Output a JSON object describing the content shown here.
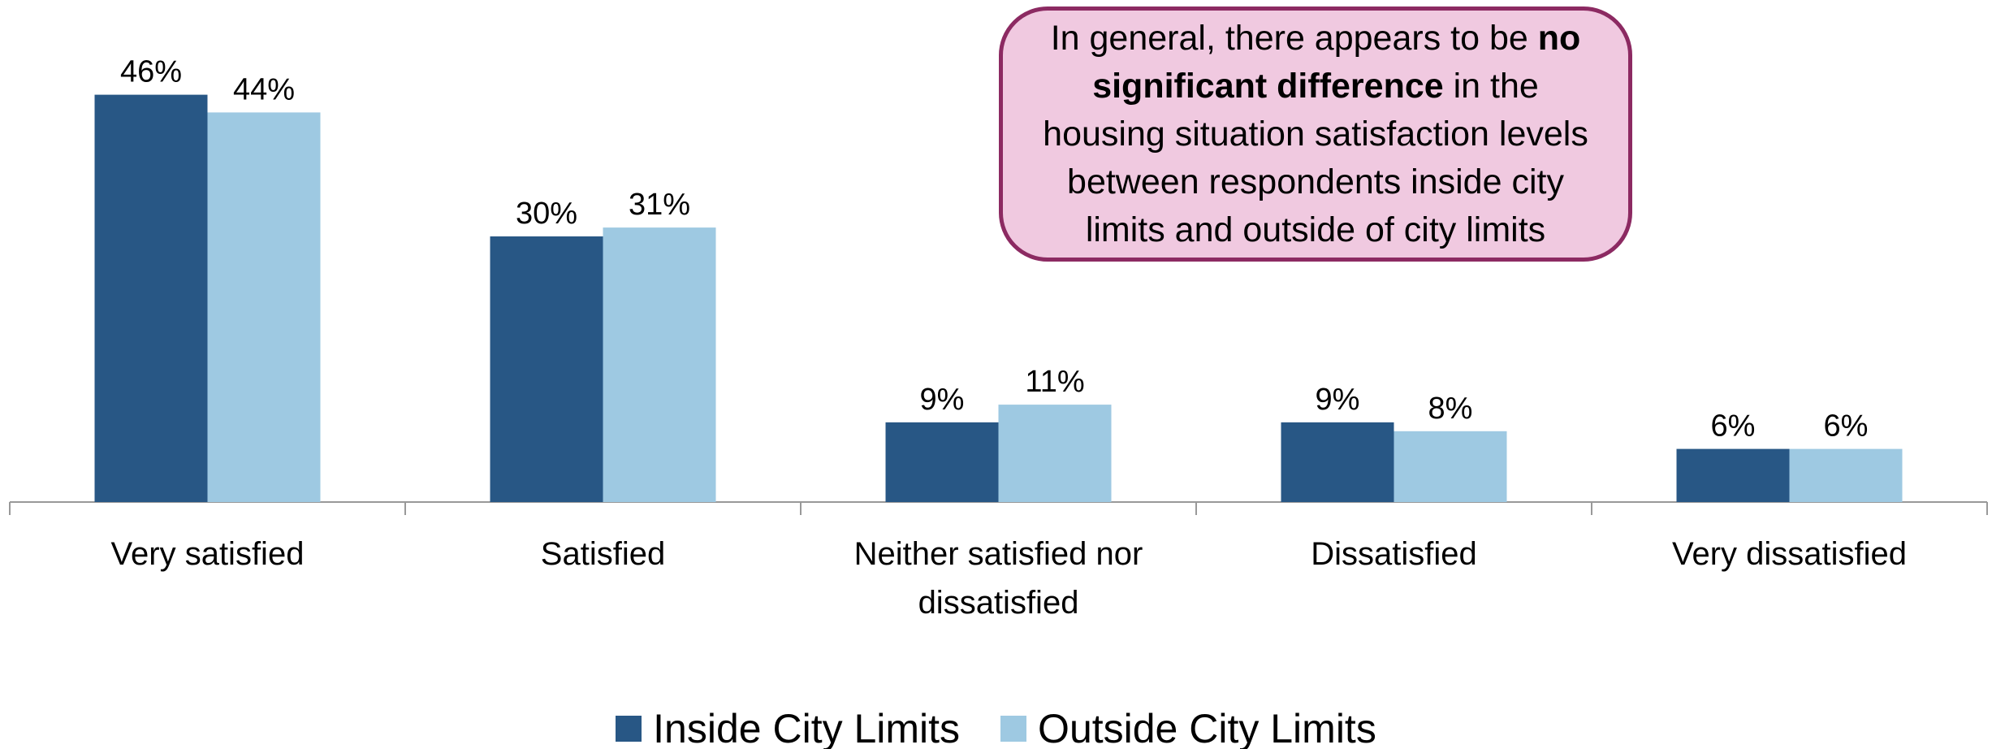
{
  "chart_data": {
    "type": "bar",
    "categories": [
      "Very satisfied",
      "Satisfied",
      "Neither satisfied nor dissatisfied",
      "Dissatisfied",
      "Very dissatisfied"
    ],
    "series": [
      {
        "name": "Inside City Limits",
        "color": "#285785",
        "values": [
          46,
          30,
          9,
          9,
          6
        ],
        "value_labels": [
          "46%",
          "30%",
          "9%",
          "9%",
          "6%"
        ]
      },
      {
        "name": "Outside City Limits",
        "color": "#9ec9e2",
        "values": [
          44,
          31,
          11,
          8,
          6
        ],
        "value_labels": [
          "44%",
          "31%",
          "11%",
          "8%",
          "6%"
        ]
      }
    ],
    "annotation": {
      "parts": [
        "In general, there appears to be ",
        "no significant difference",
        " in the housing situation satisfaction levels between respondents inside city limits and outside of city limits"
      ]
    },
    "legend": "bottom"
  }
}
